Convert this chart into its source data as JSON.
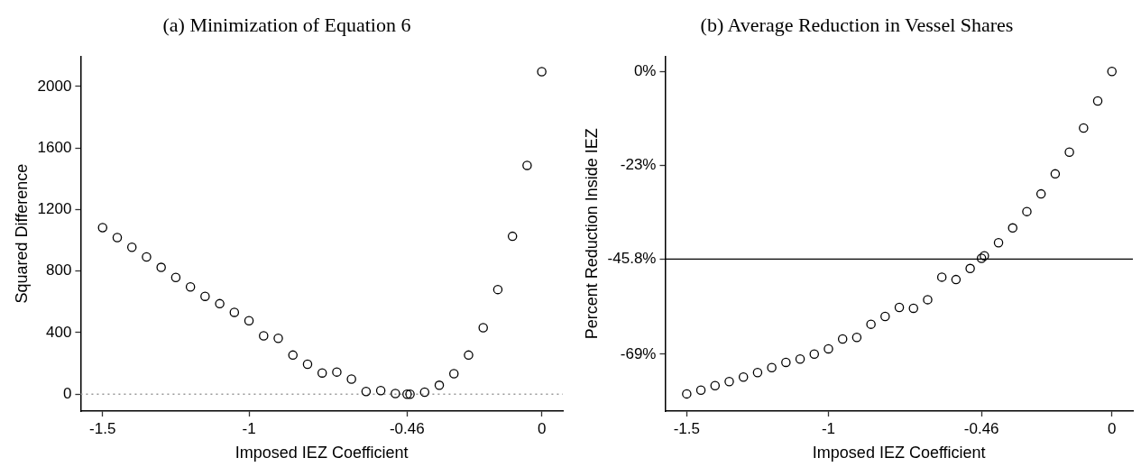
{
  "chart_data": [
    {
      "type": "scatter",
      "title": "(a) Minimization of Equation 6",
      "xlabel": "Imposed IEZ Coefficient",
      "ylabel": "Squared Difference",
      "marker": "circle",
      "grid": false,
      "legend": false,
      "xlim": [
        -1.575,
        0.072
      ],
      "xticks": [
        -1.5,
        -1,
        -0.46,
        0
      ],
      "ylim": [
        -110,
        2196
      ],
      "yticks": [
        0,
        400,
        800,
        1200,
        1600,
        2000
      ],
      "ref_lines": [
        {
          "axis": "y",
          "value": 0,
          "color": "#999999",
          "line_style": "dotted"
        }
      ],
      "series": [
        {
          "color": "#000000",
          "x": [
            -1.5,
            -1.45,
            -1.4,
            -1.35,
            -1.3,
            -1.25,
            -1.2,
            -1.15,
            -1.1,
            -1.05,
            -1,
            -0.95,
            -0.9,
            -0.85,
            -0.8,
            -0.75,
            -0.7,
            -0.65,
            -0.6,
            -0.55,
            -0.5,
            -0.46,
            -0.45,
            -0.4,
            -0.35,
            -0.3,
            -0.25,
            -0.2,
            -0.15,
            -0.1,
            -0.05,
            0
          ],
          "values": [
            1082,
            1018,
            955,
            892,
            824,
            759,
            697,
            636,
            588,
            532,
            477,
            379,
            363,
            254,
            195,
            138,
            144,
            98,
            17,
            23,
            4,
            0,
            0,
            13,
            58,
            133,
            254,
            432,
            680,
            1026,
            1487,
            2096
          ]
        }
      ]
    },
    {
      "type": "scatter",
      "title": "(b) Average Reduction in Vessel Shares",
      "xlabel": "Imposed IEZ Coefficient",
      "ylabel": "Percent Reduction Inside IEZ",
      "marker": "circle",
      "grid": false,
      "legend": false,
      "xlim": [
        -1.576,
        0.074
      ],
      "xticks": [
        -1.5,
        -1,
        -0.46,
        0
      ],
      "ylim": [
        -82.9,
        3.7
      ],
      "yticks": [
        {
          "value": 0,
          "label": "0%"
        },
        {
          "value": -23,
          "label": "-23%"
        },
        {
          "value": -45.8,
          "label": "-45.8%"
        },
        {
          "value": -69,
          "label": "-69%"
        }
      ],
      "ref_lines": [
        {
          "axis": "y",
          "value": -45.8,
          "color": "#000000",
          "line_style": "solid"
        }
      ],
      "series": [
        {
          "color": "#000000",
          "x": [
            -1.5,
            -1.45,
            -1.4,
            -1.35,
            -1.3,
            -1.25,
            -1.2,
            -1.15,
            -1.1,
            -1.05,
            -1,
            -0.95,
            -0.9,
            -0.85,
            -0.8,
            -0.75,
            -0.7,
            -0.65,
            -0.6,
            -0.55,
            -0.5,
            -0.46,
            -0.45,
            -0.4,
            -0.35,
            -0.3,
            -0.25,
            -0.2,
            -0.15,
            -0.1,
            -0.05,
            0
          ],
          "values": [
            -78.7,
            -77.8,
            -76.7,
            -75.7,
            -74.6,
            -73.5,
            -72.3,
            -71.0,
            -70.2,
            -69.0,
            -67.7,
            -65.3,
            -64.9,
            -61.7,
            -59.8,
            -57.6,
            -57.8,
            -55.7,
            -50.2,
            -50.8,
            -48.1,
            -45.6,
            -45.0,
            -41.8,
            -38.2,
            -34.2,
            -29.9,
            -25.0,
            -19.7,
            -13.8,
            -7.2,
            0
          ]
        }
      ]
    }
  ]
}
